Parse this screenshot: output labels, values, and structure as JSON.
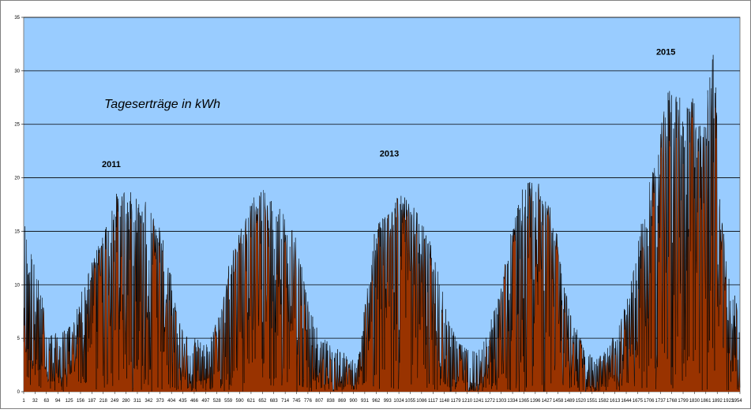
{
  "chart_data": {
    "type": "area",
    "title": "Tageserträge in kWh",
    "xlabel": "",
    "ylabel": "",
    "ylim": [
      0,
      35
    ],
    "xlim": [
      1,
      1954
    ],
    "grid": true,
    "legend": "none",
    "colors": {
      "plot_background": "#99ccff",
      "fill": "#993300",
      "line": "#000000",
      "gridline": "#000000",
      "frame": "#808080"
    },
    "y_ticks": [
      "0",
      "5",
      "10",
      "15",
      "20",
      "25",
      "30",
      "35"
    ],
    "x_ticks": [
      "1",
      "32",
      "63",
      "94",
      "125",
      "156",
      "187",
      "218",
      "249",
      "280",
      "311",
      "342",
      "373",
      "404",
      "435",
      "466",
      "497",
      "528",
      "559",
      "590",
      "621",
      "652",
      "683",
      "714",
      "745",
      "776",
      "807",
      "838",
      "869",
      "900",
      "931",
      "962",
      "993",
      "1024",
      "1055",
      "1086",
      "1117",
      "1148",
      "1179",
      "1210",
      "1241",
      "1272",
      "1303",
      "1334",
      "1365",
      "1396",
      "1427",
      "1458",
      "1489",
      "1520",
      "1551",
      "1582",
      "1613",
      "1644",
      "1675",
      "1706",
      "1737",
      "1768",
      "1799",
      "1830",
      "1861",
      "1892",
      "1923",
      "1954"
    ],
    "annotations": [
      {
        "text": "2011",
        "x": 240,
        "y": 21
      },
      {
        "text": "2013",
        "x": 998,
        "y": 22
      },
      {
        "text": "2015",
        "x": 1752,
        "y": 31.5
      }
    ],
    "envelope": {
      "day": [
        1,
        15,
        30,
        50,
        65,
        80,
        100,
        120,
        140,
        160,
        190,
        220,
        250,
        280,
        300,
        330,
        360,
        380,
        400,
        420,
        440,
        470,
        500,
        520,
        540,
        560,
        590,
        620,
        650,
        680,
        710,
        740,
        760,
        780,
        800,
        820,
        840,
        860,
        880,
        900,
        910,
        930,
        960,
        990,
        1020,
        1050,
        1080,
        1110,
        1130,
        1150,
        1170,
        1190,
        1210,
        1230,
        1250,
        1270,
        1300,
        1330,
        1360,
        1390,
        1420,
        1450,
        1470,
        1490,
        1510,
        1530,
        1560,
        1590,
        1620,
        1650,
        1680,
        1710,
        1740,
        1760,
        1780,
        1800,
        1820,
        1840,
        1855,
        1870,
        1880,
        1890,
        1900,
        1920,
        1940,
        1954
      ],
      "max": [
        16.5,
        14.5,
        12,
        9.5,
        6,
        5.5,
        5.5,
        6,
        7,
        9.5,
        12.5,
        15,
        18.5,
        19,
        18.5,
        18,
        16.5,
        15,
        12,
        8,
        5.5,
        5,
        4.5,
        6,
        8,
        12,
        15,
        18,
        19,
        18,
        17,
        15,
        12,
        8,
        6,
        5,
        4.5,
        4,
        3.5,
        3,
        2.5,
        8,
        15.5,
        17.5,
        18.5,
        18,
        16.5,
        14,
        12,
        8,
        6,
        4.5,
        4,
        4,
        4.5,
        6,
        10,
        15,
        19,
        20,
        19.5,
        16,
        11,
        8,
        6,
        4,
        3,
        4,
        6,
        9,
        15,
        20,
        25,
        28.5,
        28,
        27.5,
        28,
        26,
        24,
        31,
        33.5,
        28,
        18,
        12,
        9,
        8
      ],
      "mid": [
        8,
        6,
        4,
        3,
        2,
        1.5,
        2,
        2.5,
        4,
        7,
        10,
        12.5,
        14,
        14,
        13.5,
        12.5,
        10.5,
        8,
        5,
        3,
        2,
        1.5,
        1.5,
        3,
        5,
        9,
        12,
        14,
        14.5,
        13.5,
        12,
        9,
        6,
        3.5,
        2,
        1.5,
        1,
        1,
        1,
        1,
        1,
        4,
        10,
        13,
        14,
        13.5,
        12,
        9,
        6,
        4,
        2,
        1.5,
        1,
        1,
        1.5,
        3,
        6,
        11,
        14,
        15,
        14.5,
        11,
        7,
        4,
        2,
        1,
        0.5,
        1,
        2,
        4,
        9,
        15,
        19,
        21,
        21,
        20,
        20,
        17,
        14,
        20,
        25,
        18,
        10,
        5,
        3,
        3
      ]
    }
  }
}
